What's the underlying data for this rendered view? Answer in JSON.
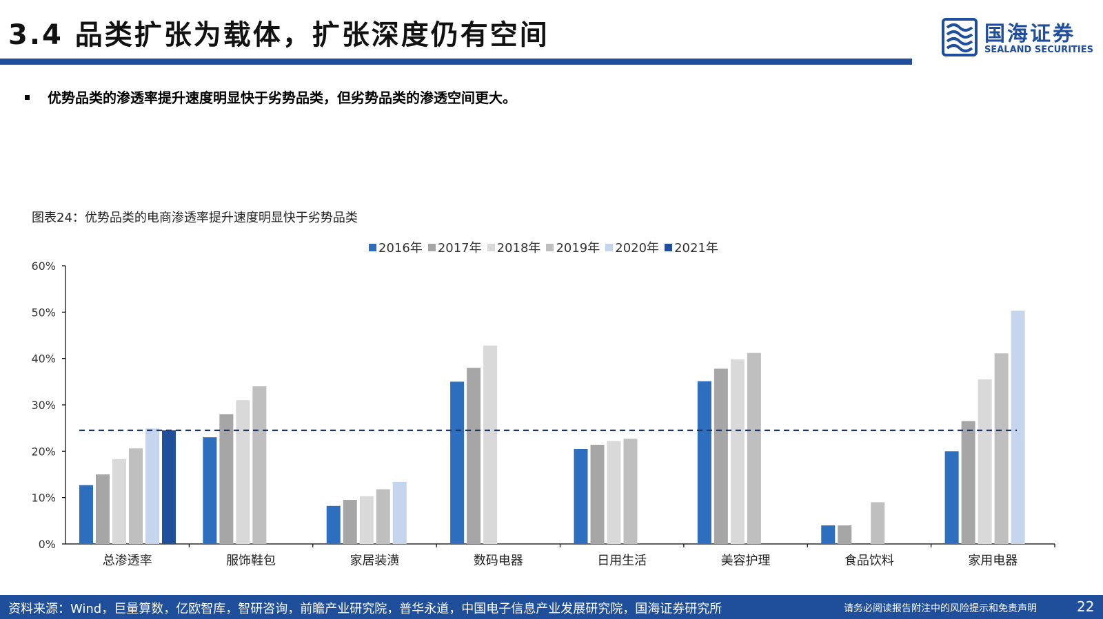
{
  "header": {
    "title": "3.4 品类扩张为载体，扩张深度仍有空间",
    "logo_cn": "国海证券",
    "logo_en": "SEALAND SECURITIES"
  },
  "bullet": "优势品类的渗透率提升速度明显快于劣势品类，但劣势品类的渗透空间更大。",
  "chart_title": "图表24：优势品类的电商渗透率提升速度明显快于劣势品类",
  "colors": {
    "brand": "#1f4e9a",
    "reference_line": "#1f3864"
  },
  "chart_data": {
    "type": "bar",
    "categories": [
      "总渗透率",
      "服饰鞋包",
      "家居装潢",
      "数码电器",
      "日用生活",
      "美容护理",
      "食品饮料",
      "家用电器"
    ],
    "series": [
      {
        "name": "2016年",
        "color": "#2e6ebf",
        "values": [
          12.7,
          23.0,
          8.2,
          35.0,
          20.5,
          35.1,
          4.0,
          20.0
        ]
      },
      {
        "name": "2017年",
        "color": "#a6a6a6",
        "values": [
          15.0,
          28.0,
          9.5,
          38.0,
          21.4,
          37.8,
          4.0,
          26.5
        ]
      },
      {
        "name": "2018年",
        "color": "#d9d9d9",
        "values": [
          18.3,
          31.0,
          10.3,
          42.8,
          22.2,
          39.8,
          null,
          35.5
        ]
      },
      {
        "name": "2019年",
        "color": "#bfbfbf",
        "values": [
          20.6,
          34.0,
          11.8,
          null,
          22.7,
          41.2,
          9.0,
          41.1
        ]
      },
      {
        "name": "2020年",
        "color": "#c5d5ee",
        "values": [
          24.9,
          null,
          13.4,
          null,
          null,
          null,
          null,
          50.3
        ]
      },
      {
        "name": "2021年",
        "color": "#1f4e9a",
        "values": [
          24.5,
          null,
          null,
          null,
          null,
          null,
          null,
          null
        ]
      }
    ],
    "reference_line": 24.5,
    "ylim": [
      0,
      60
    ],
    "yticks": [
      0,
      10,
      20,
      30,
      40,
      50,
      60
    ],
    "ytick_labels": [
      "0%",
      "10%",
      "20%",
      "30%",
      "40%",
      "50%",
      "60%"
    ],
    "legend_position": "top-center",
    "grid": false,
    "title": "",
    "xlabel": "",
    "ylabel": ""
  },
  "footer": {
    "source": "资料来源：Wind，巨量算数，亿欧智库，智研咨询，前瞻产业研究院，普华永道，中国电子信息产业发展研究院，国海证券研究所",
    "disclaimer": "请务必阅读报告附注中的风险提示和免责声明",
    "page": "22"
  }
}
